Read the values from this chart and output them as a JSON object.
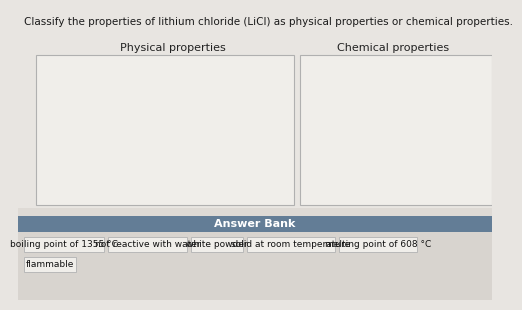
{
  "title": "Classify the properties of lithium chloride (LiCl) as physical properties or chemical properties.",
  "title_fontsize": 7.5,
  "bg_color": "#e8e5e1",
  "box_bg": "#ebebeb",
  "box_border": "#b0b0b0",
  "answer_bank_bg": "#637d96",
  "answer_bank_text": "Answer Bank",
  "answer_bank_fontsize": 8,
  "physical_label": "Physical properties",
  "chemical_label": "Chemical properties",
  "label_fontsize": 8,
  "answer_items": [
    "boiling point of 1355 °C",
    "not reactive with water",
    "white powder",
    "solid at room temperature",
    "melting point of 608 °C"
  ],
  "answer_items_row2": [
    "flammable"
  ],
  "item_fontsize": 6.5,
  "item_bg": "#f0eeea",
  "item_border": "#b8b8b8",
  "panel_bg": "#dedad5",
  "bottom_bg": "#d8d4cf"
}
